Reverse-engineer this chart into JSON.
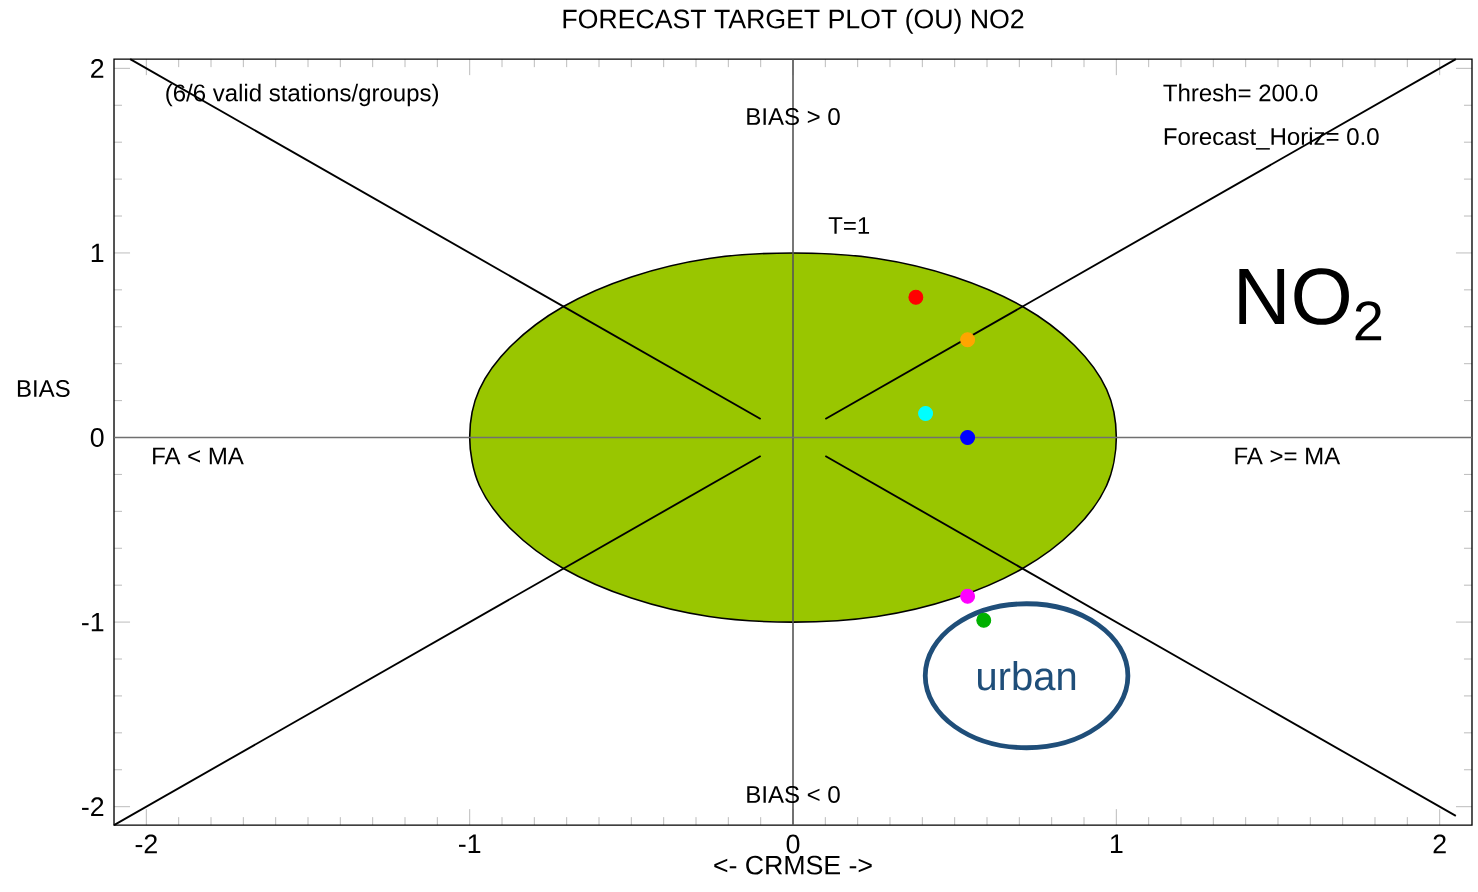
{
  "chart_data": {
    "type": "scatter",
    "title": "FORECAST TARGET PLOT (OU)    NO2",
    "xlabel": "<- CRMSE ->",
    "ylabel": "BIAS",
    "xlim": [
      -2.1,
      2.1
    ],
    "ylim": [
      -2.1,
      2.05
    ],
    "xticks": [
      -2,
      -1,
      0,
      1,
      2
    ],
    "yticks": [
      -2,
      -1,
      0,
      1,
      2
    ],
    "grid": false,
    "series": [
      {
        "type": "area",
        "marker": "none",
        "color": "#99c600",
        "x": [
          1,
          0.97,
          0.87,
          0.71,
          0.5,
          0.26,
          0,
          -0.26,
          -0.5,
          -0.71,
          -0.87,
          -0.97,
          -1,
          -0.97,
          -0.87,
          -0.71,
          -0.5,
          -0.26,
          0,
          0.26,
          0.5,
          0.71,
          0.87,
          0.97
        ],
        "values": [
          0,
          0.26,
          0.5,
          0.71,
          0.87,
          0.97,
          1,
          0.97,
          0.87,
          0.71,
          0.5,
          0.26,
          0,
          -0.26,
          -0.5,
          -0.71,
          -0.87,
          -0.97,
          -1,
          -0.97,
          -0.87,
          -0.71,
          -0.5,
          -0.26
        ]
      },
      {
        "type": "line",
        "marker": "none",
        "color": "#000000",
        "line_style": "solid",
        "x": [
          0.1,
          2.05
        ],
        "values": [
          0.1,
          2.05
        ]
      },
      {
        "type": "line",
        "marker": "none",
        "color": "#000000",
        "line_style": "solid",
        "x": [
          -0.1,
          -2.05
        ],
        "values": [
          0.1,
          2.05
        ]
      },
      {
        "type": "line",
        "marker": "none",
        "color": "#000000",
        "line_style": "solid",
        "x": [
          0.1,
          2.05
        ],
        "values": [
          -0.1,
          -2.05
        ]
      },
      {
        "type": "line",
        "marker": "none",
        "color": "#000000",
        "line_style": "solid",
        "x": [
          -0.1,
          -2.1
        ],
        "values": [
          -0.1,
          -2.1
        ]
      },
      {
        "marker": "circle",
        "x": [
          0.38,
          0.54,
          0.41,
          0.54,
          0.54,
          0.59
        ],
        "values": [
          0.76,
          0.53,
          0.13,
          0.0,
          -0.86,
          -0.99
        ],
        "colors": [
          "#ff0000",
          "#ffa500",
          "#00ffff",
          "#0000ff",
          "#ff00ff",
          "#00b000"
        ]
      }
    ],
    "ref_lines": [
      {
        "axis": "x",
        "value": 0,
        "color": "#555555"
      },
      {
        "axis": "y",
        "value": 0,
        "color": "#707070"
      }
    ],
    "annotations": [
      "(6/6 valid stations/groups)",
      "Thresh= 200.0",
      "Forecast_Horiz= 0.0",
      "BIAS > 0",
      "BIAS < 0",
      "FA < MA",
      "FA >= MA",
      {
        "text": "T=1",
        "x": 0,
        "y": 1
      },
      "NO$_{2}$",
      "urban"
    ]
  }
}
